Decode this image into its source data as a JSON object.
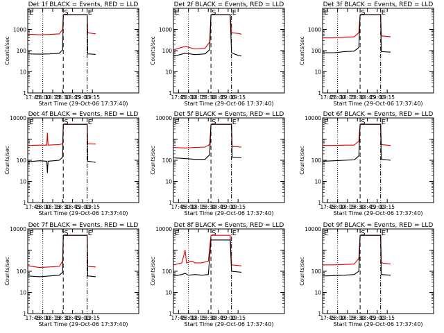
{
  "chart_data": {
    "type": "line",
    "layout": "3x3 grid of panels",
    "xlabel": "Start Time (29-Oct-06 17:37:40)",
    "ylabel": "Counts/sec",
    "yscale": "log",
    "ylim": [
      1,
      10000
    ],
    "y_tick_labels": [
      "1",
      "10",
      "100",
      "1000"
    ],
    "y_tick_labels_panels_4_to_9": [
      "1",
      "10",
      "100",
      "10000"
    ],
    "xlim_minutes": [
      -7.67,
      160
    ],
    "x_tick_labels": [
      "17:45",
      "18:00",
      "18:15",
      "18:30",
      "18:45",
      "19:00",
      "19:15"
    ],
    "x_tick_minutes": [
      0,
      15,
      30,
      45,
      60,
      75,
      90
    ],
    "marker_labels": {
      "start": "E",
      "saa_start": "S",
      "saa_end": "E"
    },
    "series_colors": {
      "events": "#000000",
      "lld": "#e00000"
    },
    "panels": [
      {
        "title": "Det 1f BLACK = Events, RED = LLD",
        "markers_min": {
          "dotted": 15,
          "dashed1": 46,
          "dashed2": 82
        },
        "events": [
          [
            -7,
            70
          ],
          [
            10,
            68
          ],
          [
            25,
            70
          ],
          [
            40,
            75
          ],
          [
            45,
            110
          ],
          [
            46,
            5000
          ],
          [
            82,
            5000
          ],
          [
            83,
            70
          ],
          [
            90,
            68
          ],
          [
            95,
            66
          ]
        ],
        "lld": [
          [
            -7,
            600
          ],
          [
            10,
            560
          ],
          [
            25,
            580
          ],
          [
            40,
            620
          ],
          [
            45,
            1000
          ],
          [
            46,
            5000
          ],
          [
            82,
            5000
          ],
          [
            83,
            700
          ],
          [
            90,
            650
          ],
          [
            95,
            620
          ]
        ]
      },
      {
        "title": "Det 2f BLACK = Events, RED = LLD",
        "markers_min": {
          "dotted": 15,
          "dashed1": 49,
          "dashed2": 80
        },
        "events": [
          [
            -7,
            55
          ],
          [
            10,
            75
          ],
          [
            25,
            65
          ],
          [
            40,
            70
          ],
          [
            47,
            110
          ],
          [
            49,
            5000
          ],
          [
            78,
            5000
          ],
          [
            80,
            80
          ],
          [
            90,
            60
          ],
          [
            95,
            55
          ]
        ],
        "lld": [
          [
            -7,
            110
          ],
          [
            10,
            160
          ],
          [
            25,
            120
          ],
          [
            40,
            130
          ],
          [
            47,
            250
          ],
          [
            49,
            5000
          ],
          [
            78,
            5000
          ],
          [
            80,
            700
          ],
          [
            90,
            650
          ],
          [
            95,
            600
          ]
        ]
      },
      {
        "title": "Det 3f BLACK = Events, RED = LLD",
        "markers_min": {
          "dotted": 15,
          "dashed1": 49,
          "dashed2": 80
        },
        "events": [
          [
            -7,
            80
          ],
          [
            10,
            80
          ],
          [
            25,
            90
          ],
          [
            40,
            95
          ],
          [
            47,
            140
          ],
          [
            49,
            5000
          ],
          [
            80,
            5000
          ],
          [
            81,
            90
          ],
          [
            95,
            85
          ]
        ],
        "lld": [
          [
            -7,
            400
          ],
          [
            10,
            400
          ],
          [
            25,
            430
          ],
          [
            40,
            450
          ],
          [
            47,
            700
          ],
          [
            49,
            5000
          ],
          [
            80,
            5000
          ],
          [
            81,
            500
          ],
          [
            95,
            450
          ]
        ]
      },
      {
        "title": "Det 4f BLACK = Events, RED = LLD",
        "markers_min": {
          "dotted": 15,
          "dashed1": 46,
          "dashed2": 82
        },
        "events": [
          [
            -7,
            85
          ],
          [
            10,
            95
          ],
          [
            21,
            90
          ],
          [
            22,
            25
          ],
          [
            23,
            90
          ],
          [
            40,
            100
          ],
          [
            45,
            140
          ],
          [
            46,
            5000
          ],
          [
            82,
            5000
          ],
          [
            83,
            90
          ],
          [
            95,
            80
          ]
        ],
        "lld": [
          [
            -7,
            500
          ],
          [
            10,
            520
          ],
          [
            21,
            520
          ],
          [
            22,
            2000
          ],
          [
            23,
            520
          ],
          [
            40,
            550
          ],
          [
            45,
            600
          ],
          [
            46,
            5000
          ],
          [
            82,
            5000
          ],
          [
            83,
            600
          ],
          [
            95,
            580
          ]
        ]
      },
      {
        "title": "Det 5f BLACK = Events, RED = LLD",
        "markers_min": {
          "dotted": 15,
          "dashed1": 49,
          "dashed2": 80
        },
        "events": [
          [
            -7,
            130
          ],
          [
            10,
            120
          ],
          [
            25,
            110
          ],
          [
            40,
            110
          ],
          [
            47,
            180
          ],
          [
            49,
            5000
          ],
          [
            80,
            5000
          ],
          [
            81,
            140
          ],
          [
            95,
            130
          ]
        ],
        "lld": [
          [
            -7,
            400
          ],
          [
            10,
            380
          ],
          [
            25,
            400
          ],
          [
            40,
            420
          ],
          [
            47,
            550
          ],
          [
            49,
            5000
          ],
          [
            80,
            5000
          ],
          [
            81,
            450
          ],
          [
            95,
            420
          ]
        ]
      },
      {
        "title": "Det 6f BLACK = Events, RED = LLD",
        "markers_min": {
          "dotted": 15,
          "dashed1": 49,
          "dashed2": 80
        },
        "events": [
          [
            -7,
            90
          ],
          [
            10,
            95
          ],
          [
            25,
            100
          ],
          [
            40,
            105
          ],
          [
            47,
            160
          ],
          [
            49,
            5000
          ],
          [
            80,
            5000
          ],
          [
            81,
            110
          ],
          [
            95,
            100
          ]
        ],
        "lld": [
          [
            -7,
            500
          ],
          [
            10,
            500
          ],
          [
            25,
            520
          ],
          [
            40,
            520
          ],
          [
            47,
            800
          ],
          [
            49,
            5000
          ],
          [
            80,
            5000
          ],
          [
            81,
            550
          ],
          [
            95,
            500
          ]
        ]
      },
      {
        "title": "Det 7f BLACK = Events, RED = LLD",
        "markers_min": {
          "dotted": 15,
          "dashed1": 46,
          "dashed2": 82
        },
        "events": [
          [
            -7,
            60
          ],
          [
            10,
            55
          ],
          [
            25,
            60
          ],
          [
            40,
            65
          ],
          [
            45,
            90
          ],
          [
            46,
            5000
          ],
          [
            82,
            5000
          ],
          [
            83,
            60
          ],
          [
            95,
            55
          ]
        ],
        "lld": [
          [
            -7,
            180
          ],
          [
            10,
            150
          ],
          [
            25,
            160
          ],
          [
            40,
            170
          ],
          [
            45,
            300
          ],
          [
            46,
            5000
          ],
          [
            82,
            5000
          ],
          [
            83,
            170
          ],
          [
            95,
            160
          ]
        ]
      },
      {
        "title": "Det 8f BLACK = Events, RED = LLD",
        "markers_min": {
          "dotted": 15,
          "dashed1": 49,
          "dashed2": 80
        },
        "events": [
          [
            -7,
            60
          ],
          [
            5,
            70
          ],
          [
            10,
            80
          ],
          [
            15,
            65
          ],
          [
            25,
            70
          ],
          [
            35,
            65
          ],
          [
            45,
            70
          ],
          [
            49,
            3000
          ],
          [
            78,
            3000
          ],
          [
            80,
            100
          ],
          [
            95,
            90
          ]
        ],
        "lld": [
          [
            -7,
            200
          ],
          [
            5,
            250
          ],
          [
            10,
            1000
          ],
          [
            12,
            250
          ],
          [
            20,
            300
          ],
          [
            25,
            250
          ],
          [
            35,
            250
          ],
          [
            45,
            300
          ],
          [
            49,
            5000
          ],
          [
            78,
            5000
          ],
          [
            80,
            200
          ],
          [
            95,
            180
          ]
        ]
      },
      {
        "title": "Det 9f BLACK = Events, RED = LLD",
        "markers_min": {
          "dotted": 15,
          "dashed1": 49,
          "dashed2": 80
        },
        "events": [
          [
            -7,
            60
          ],
          [
            10,
            62
          ],
          [
            25,
            65
          ],
          [
            40,
            70
          ],
          [
            47,
            100
          ],
          [
            49,
            5000
          ],
          [
            80,
            5000
          ],
          [
            81,
            70
          ],
          [
            95,
            65
          ]
        ],
        "lld": [
          [
            -7,
            200
          ],
          [
            10,
            200
          ],
          [
            25,
            210
          ],
          [
            40,
            220
          ],
          [
            47,
            400
          ],
          [
            49,
            5000
          ],
          [
            80,
            5000
          ],
          [
            81,
            250
          ],
          [
            95,
            220
          ]
        ]
      }
    ]
  }
}
